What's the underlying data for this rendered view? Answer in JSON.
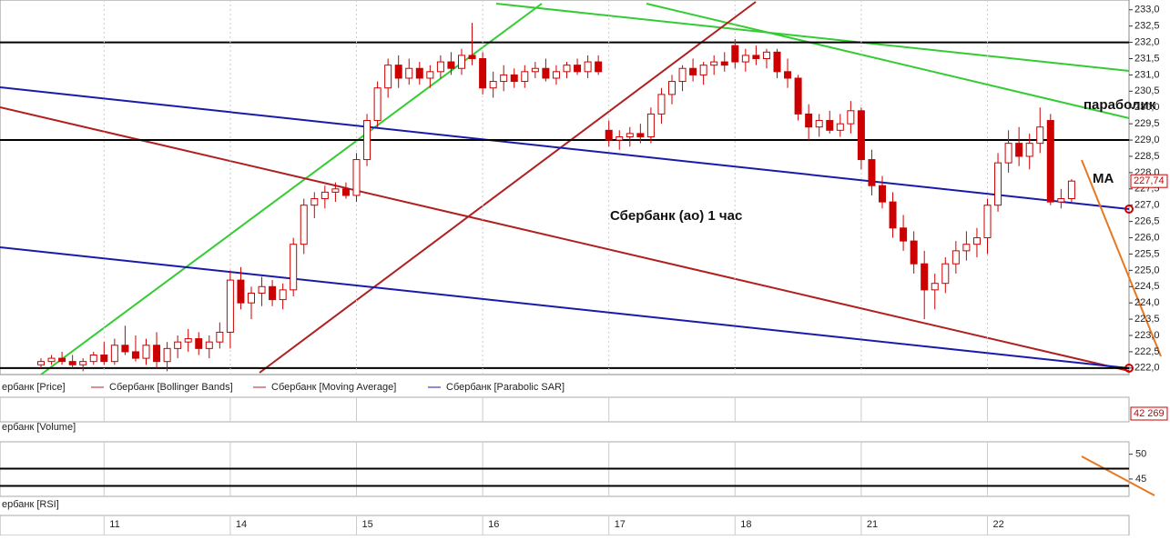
{
  "chart_data": {
    "type": "candlestick",
    "title": "Сбербанк (ао)   1 час",
    "annotations": [
      "параболик",
      "MA"
    ],
    "ylim": [
      221.8,
      233.3
    ],
    "yticks": [
      {
        "value": 222,
        "label": "222,0"
      },
      {
        "value": 222.5,
        "label": "222,5"
      },
      {
        "value": 223,
        "label": "223,0"
      },
      {
        "value": 223.5,
        "label": "223,5"
      },
      {
        "value": 224,
        "label": "224,0"
      },
      {
        "value": 224.5,
        "label": "224,5"
      },
      {
        "value": 225,
        "label": "225,0"
      },
      {
        "value": 225.5,
        "label": "225,5"
      },
      {
        "value": 226,
        "label": "226,0"
      },
      {
        "value": 226.5,
        "label": "226,5"
      },
      {
        "value": 227,
        "label": "227,0"
      },
      {
        "value": 227.5,
        "label": "227,5"
      },
      {
        "value": 228,
        "label": "228,0"
      },
      {
        "value": 228.5,
        "label": "228,5"
      },
      {
        "value": 229,
        "label": "229,0"
      },
      {
        "value": 229.5,
        "label": "229,5"
      },
      {
        "value": 230,
        "label": "230,0"
      },
      {
        "value": 230.5,
        "label": "230,5"
      },
      {
        "value": 231,
        "label": "231,0"
      },
      {
        "value": 231.5,
        "label": "231,5"
      },
      {
        "value": 232,
        "label": "232,0"
      },
      {
        "value": 232.5,
        "label": "232,5"
      },
      {
        "value": 233,
        "label": "233,0"
      }
    ],
    "levels": [
      232,
      229,
      222
    ],
    "last_price": {
      "value": 227.74,
      "label": "227,74"
    },
    "color": "#cc0000",
    "xticks": [
      {
        "value": 6,
        "label": "11"
      },
      {
        "value": 18,
        "label": "14"
      },
      {
        "value": 30,
        "label": "15"
      },
      {
        "value": 42,
        "label": "16"
      },
      {
        "value": 54,
        "label": "17"
      },
      {
        "value": 66,
        "label": "18"
      },
      {
        "value": 78,
        "label": "21"
      },
      {
        "value": 90,
        "label": "22"
      }
    ],
    "legend": [
      "ербанк [Price]",
      "Сбербанк [Bollinger Bands]",
      "Сбербанк [Moving Average]",
      "Сбербанк [Parabolic SAR]"
    ],
    "ohlc": [
      [
        222.1,
        222.3,
        222.0,
        222.2
      ],
      [
        222.2,
        222.4,
        222.1,
        222.3
      ],
      [
        222.3,
        222.5,
        222.1,
        222.2
      ],
      [
        222.2,
        222.4,
        222.0,
        222.1
      ],
      [
        222.1,
        222.3,
        221.9,
        222.2
      ],
      [
        222.2,
        222.5,
        222.1,
        222.4
      ],
      [
        222.4,
        222.8,
        222.1,
        222.2
      ],
      [
        222.2,
        222.9,
        222.1,
        222.7
      ],
      [
        222.7,
        223.3,
        222.4,
        222.5
      ],
      [
        222.5,
        223.0,
        222.2,
        222.3
      ],
      [
        222.3,
        222.9,
        222.1,
        222.7
      ],
      [
        222.7,
        223.1,
        222.0,
        222.2
      ],
      [
        222.2,
        222.8,
        221.9,
        222.6
      ],
      [
        222.6,
        223.0,
        222.3,
        222.8
      ],
      [
        222.8,
        223.2,
        222.5,
        222.9
      ],
      [
        222.9,
        223.1,
        222.4,
        222.6
      ],
      [
        222.6,
        223.0,
        222.3,
        222.8
      ],
      [
        222.8,
        223.4,
        222.6,
        223.1
      ],
      [
        223.1,
        225.0,
        222.6,
        224.7
      ],
      [
        224.7,
        225.1,
        223.8,
        224.0
      ],
      [
        224.0,
        224.5,
        223.5,
        224.3
      ],
      [
        224.3,
        224.8,
        223.9,
        224.5
      ],
      [
        224.5,
        224.7,
        223.9,
        224.1
      ],
      [
        224.1,
        224.6,
        223.8,
        224.4
      ],
      [
        224.4,
        226.0,
        224.2,
        225.8
      ],
      [
        225.8,
        227.2,
        225.5,
        227.0
      ],
      [
        227.0,
        227.4,
        226.6,
        227.2
      ],
      [
        227.2,
        227.6,
        226.9,
        227.4
      ],
      [
        227.4,
        227.7,
        227.1,
        227.5
      ],
      [
        227.5,
        227.7,
        227.2,
        227.3
      ],
      [
        227.3,
        228.6,
        227.1,
        228.4
      ],
      [
        228.4,
        229.8,
        228.2,
        229.6
      ],
      [
        229.6,
        230.8,
        229.4,
        230.6
      ],
      [
        230.6,
        231.5,
        230.3,
        231.3
      ],
      [
        231.3,
        231.6,
        230.6,
        230.9
      ],
      [
        230.9,
        231.5,
        230.7,
        231.2
      ],
      [
        231.2,
        231.4,
        230.7,
        230.9
      ],
      [
        230.9,
        231.3,
        230.6,
        231.1
      ],
      [
        231.1,
        231.6,
        230.9,
        231.4
      ],
      [
        231.4,
        231.7,
        231.0,
        231.2
      ],
      [
        231.2,
        231.8,
        231.0,
        231.6
      ],
      [
        231.6,
        232.6,
        231.3,
        231.5
      ],
      [
        231.5,
        231.7,
        230.4,
        230.6
      ],
      [
        230.6,
        231.1,
        230.3,
        230.8
      ],
      [
        230.8,
        231.3,
        230.5,
        231.0
      ],
      [
        231.0,
        231.2,
        230.6,
        230.8
      ],
      [
        230.8,
        231.3,
        230.6,
        231.1
      ],
      [
        231.1,
        231.4,
        230.9,
        231.2
      ],
      [
        231.2,
        231.5,
        230.8,
        230.9
      ],
      [
        230.9,
        231.3,
        230.7,
        231.1
      ],
      [
        231.1,
        231.4,
        230.9,
        231.3
      ],
      [
        231.3,
        231.5,
        231.0,
        231.1
      ],
      [
        231.1,
        231.6,
        230.9,
        231.4
      ],
      [
        231.4,
        231.6,
        231.0,
        231.1
      ],
      [
        229.3,
        229.6,
        228.8,
        229.0
      ],
      [
        229.0,
        229.3,
        228.7,
        229.1
      ],
      [
        229.1,
        229.4,
        228.8,
        229.2
      ],
      [
        229.2,
        229.5,
        228.9,
        229.1
      ],
      [
        229.1,
        230.0,
        228.9,
        229.8
      ],
      [
        229.8,
        230.6,
        229.5,
        230.4
      ],
      [
        230.4,
        231.0,
        230.1,
        230.8
      ],
      [
        230.8,
        231.3,
        230.5,
        231.2
      ],
      [
        231.2,
        231.5,
        230.8,
        231.0
      ],
      [
        231.0,
        231.4,
        230.7,
        231.3
      ],
      [
        231.3,
        231.6,
        231.0,
        231.4
      ],
      [
        231.4,
        231.7,
        231.1,
        231.3
      ],
      [
        231.9,
        232.1,
        231.2,
        231.4
      ],
      [
        231.4,
        231.8,
        231.1,
        231.6
      ],
      [
        231.6,
        231.9,
        231.3,
        231.5
      ],
      [
        231.5,
        231.8,
        231.2,
        231.7
      ],
      [
        231.7,
        231.8,
        230.9,
        231.1
      ],
      [
        231.1,
        231.5,
        230.6,
        230.9
      ],
      [
        230.9,
        231.0,
        229.6,
        229.8
      ],
      [
        229.8,
        230.1,
        229.0,
        229.4
      ],
      [
        229.4,
        229.8,
        229.1,
        229.6
      ],
      [
        229.6,
        229.9,
        229.2,
        229.3
      ],
      [
        229.3,
        229.8,
        229.1,
        229.5
      ],
      [
        229.5,
        230.2,
        229.2,
        229.9
      ],
      [
        229.9,
        230.0,
        228.1,
        228.4
      ],
      [
        228.4,
        228.7,
        227.3,
        227.6
      ],
      [
        227.6,
        227.9,
        226.9,
        227.1
      ],
      [
        227.1,
        227.4,
        226.0,
        226.3
      ],
      [
        226.3,
        226.7,
        225.6,
        225.9
      ],
      [
        225.9,
        226.2,
        224.9,
        225.2
      ],
      [
        225.2,
        225.6,
        223.5,
        224.4
      ],
      [
        224.4,
        224.9,
        223.8,
        224.6
      ],
      [
        224.6,
        225.4,
        224.3,
        225.2
      ],
      [
        225.2,
        225.9,
        224.9,
        225.6
      ],
      [
        225.6,
        226.2,
        225.3,
        225.8
      ],
      [
        225.8,
        226.3,
        225.4,
        226.0
      ],
      [
        226.0,
        227.2,
        225.5,
        227.0
      ],
      [
        227.0,
        228.6,
        226.8,
        228.3
      ],
      [
        228.3,
        229.3,
        228.0,
        228.9
      ],
      [
        228.9,
        229.4,
        228.2,
        228.5
      ],
      [
        228.5,
        229.2,
        228.1,
        228.9
      ],
      [
        228.9,
        230.0,
        228.6,
        229.4
      ],
      [
        229.6,
        229.8,
        227.0,
        227.1
      ],
      [
        227.1,
        227.5,
        226.9,
        227.2
      ],
      [
        227.2,
        227.8,
        227.1,
        227.74
      ]
    ],
    "volume": {
      "name": "ербанк [Volume]",
      "last": {
        "value": 42269,
        "label": "42 269"
      }
    },
    "rsi": {
      "name": "ербанк [RSI]",
      "ylim": [
        41.5,
        52.5
      ],
      "yticks": [
        50,
        45
      ],
      "levels": [
        47.1,
        43.6
      ]
    }
  }
}
